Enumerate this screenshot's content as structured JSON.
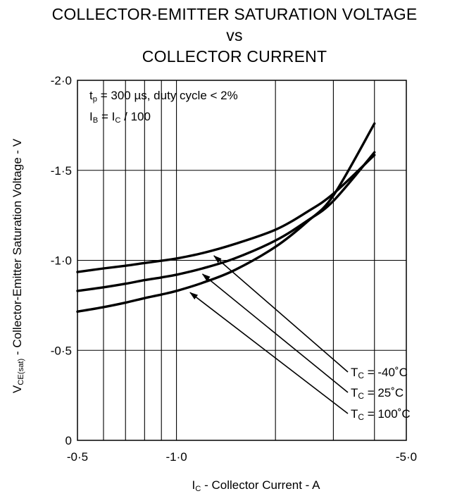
{
  "chart_data": {
    "type": "line",
    "title_lines": [
      "COLLECTOR-EMITTER SATURATION VOLTAGE",
      "vs",
      "COLLECTOR CURRENT"
    ],
    "xlabel": {
      "main": "I",
      "sub": "C",
      "rest": " - Collector Current - A"
    },
    "ylabel": {
      "main": "V",
      "sub": "CE(sat)",
      "rest": " - Collector-Emitter Saturation Voltage - V"
    },
    "x_scale": "log",
    "xlim": [
      -0.5,
      -5.0
    ],
    "ylim": [
      0,
      -2.0
    ],
    "x_tick_labels": [
      {
        "value": -0.5,
        "label": "-0·5"
      },
      {
        "value": -1.0,
        "label": "-1·0"
      },
      {
        "value": -5.0,
        "label": "-5·0"
      }
    ],
    "x_gridlines": [
      -0.6,
      -0.7,
      -0.8,
      -0.9,
      -1.0,
      -2.0,
      -3.0,
      -4.0
    ],
    "y_ticks": [
      {
        "value": 0,
        "label": "0"
      },
      {
        "value": -0.5,
        "label": "-0·5"
      },
      {
        "value": -1.0,
        "label": "-1·0"
      },
      {
        "value": -1.5,
        "label": "-1·5"
      },
      {
        "value": -2.0,
        "label": "-2·0"
      }
    ],
    "grid": true,
    "conditions": [
      {
        "main": "t",
        "sub": "p",
        "rest": " = 300 µs, duty cycle < 2%"
      },
      {
        "main": "I",
        "sub": "B",
        "rest": " = I",
        "sub2": "C",
        "rest2": " / 100"
      }
    ],
    "series": [
      {
        "name": "-40°C",
        "label_main": "T",
        "label_sub": "C",
        "label_rest": " =  -40˚C",
        "x": [
          -0.5,
          -0.6,
          -0.7,
          -0.8,
          -0.9,
          -1.0,
          -1.2,
          -1.5,
          -2.0,
          -2.5,
          -3.0,
          -4.0
        ],
        "y": [
          -0.935,
          -0.955,
          -0.97,
          -0.985,
          -0.998,
          -1.01,
          -1.04,
          -1.09,
          -1.17,
          -1.27,
          -1.37,
          -1.585
        ]
      },
      {
        "name": "25°C",
        "label_main": "T",
        "label_sub": "C",
        "label_rest": " =   25˚C",
        "x": [
          -0.5,
          -0.6,
          -0.7,
          -0.8,
          -0.9,
          -1.0,
          -1.2,
          -1.5,
          -2.0,
          -2.5,
          -3.0,
          -4.0
        ],
        "y": [
          -0.83,
          -0.85,
          -0.87,
          -0.89,
          -0.905,
          -0.92,
          -0.955,
          -1.01,
          -1.11,
          -1.22,
          -1.33,
          -1.6
        ]
      },
      {
        "name": "100°C",
        "label_main": "T",
        "label_sub": "C",
        "label_rest": " = 100˚C",
        "x": [
          -0.5,
          -0.6,
          -0.7,
          -0.8,
          -0.9,
          -1.0,
          -1.2,
          -1.5,
          -2.0,
          -2.5,
          -3.0,
          -4.0
        ],
        "y": [
          -0.715,
          -0.74,
          -0.765,
          -0.79,
          -0.81,
          -0.83,
          -0.875,
          -0.945,
          -1.075,
          -1.215,
          -1.36,
          -1.76
        ]
      }
    ]
  }
}
